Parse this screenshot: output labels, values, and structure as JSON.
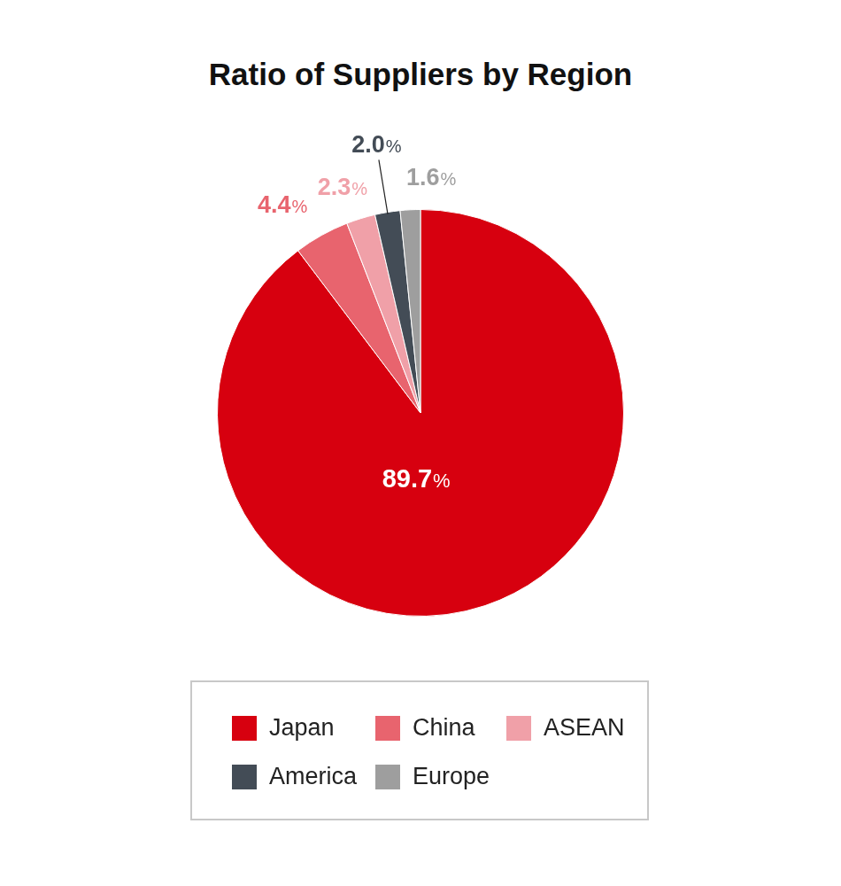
{
  "chart_data": {
    "type": "pie",
    "title": "Ratio of Suppliers by Region",
    "categories": [
      "Japan",
      "China",
      "ASEAN",
      "America",
      "Europe"
    ],
    "values": [
      89.7,
      4.4,
      2.3,
      2.0,
      1.6
    ],
    "value_labels": [
      "89.7%",
      "4.4%",
      "2.3%",
      "2.0%",
      "1.6%"
    ],
    "colors": [
      "#d7000f",
      "#e8646e",
      "#f0a0a8",
      "#434c56",
      "#9e9e9e"
    ],
    "data_labels": true,
    "legend": "bottom"
  }
}
